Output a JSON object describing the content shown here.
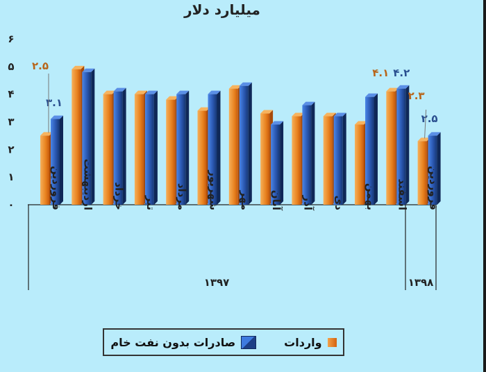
{
  "title": "میلیارد دلار",
  "chart_data": {
    "type": "bar",
    "title": "میلیارد دلار",
    "ylim": [
      0,
      6
    ],
    "yticks": [
      "۰",
      "۱",
      "۲",
      "۳",
      "۴",
      "۵",
      "۶"
    ],
    "yticks_values": [
      0,
      1,
      2,
      3,
      4,
      5,
      6
    ],
    "categories": [
      "فروردین",
      "اردیبهشت",
      "خرداد",
      "تیر",
      "مرداد",
      "شهریور",
      "مهر",
      "آبان",
      "آذر",
      "دی",
      "بهمن",
      "اسفند",
      "فروردین"
    ],
    "groups": [
      {
        "label": "۱۳۹۷",
        "from": 0,
        "to": 11
      },
      {
        "label": "۱۳۹۸",
        "from": 12,
        "to": 12
      }
    ],
    "series": [
      {
        "name": "واردات",
        "color": "#e8821f",
        "values": [
          2.5,
          4.9,
          4.0,
          4.0,
          3.8,
          3.4,
          4.2,
          3.3,
          3.2,
          3.2,
          2.9,
          4.1,
          2.3
        ]
      },
      {
        "name": "صادرات بدون نفت خام",
        "color": "#2a57b0",
        "values": [
          3.1,
          4.8,
          4.1,
          4.0,
          4.0,
          4.0,
          4.3,
          2.9,
          3.6,
          3.2,
          3.9,
          4.2,
          2.5
        ]
      }
    ],
    "data_labels": [
      {
        "series": 0,
        "index": 0,
        "text": "۲.۵",
        "color": "#b8651a"
      },
      {
        "series": 1,
        "index": 0,
        "text": "۳.۱",
        "color": "#2a4f8f"
      },
      {
        "series": 0,
        "index": 11,
        "text": "۴.۱",
        "color": "#b8651a"
      },
      {
        "series": 1,
        "index": 11,
        "text": "۴.۲",
        "color": "#2a4f8f"
      },
      {
        "series": 0,
        "index": 12,
        "text": "۲.۳",
        "color": "#b8651a"
      },
      {
        "series": 1,
        "index": 12,
        "text": "۲.۵",
        "color": "#2a4f8f"
      }
    ],
    "legend": {
      "position": "bottom"
    },
    "grid": false
  },
  "legend": {
    "exports_label": "صادرات بدون نفت خام",
    "imports_label": "واردات"
  }
}
